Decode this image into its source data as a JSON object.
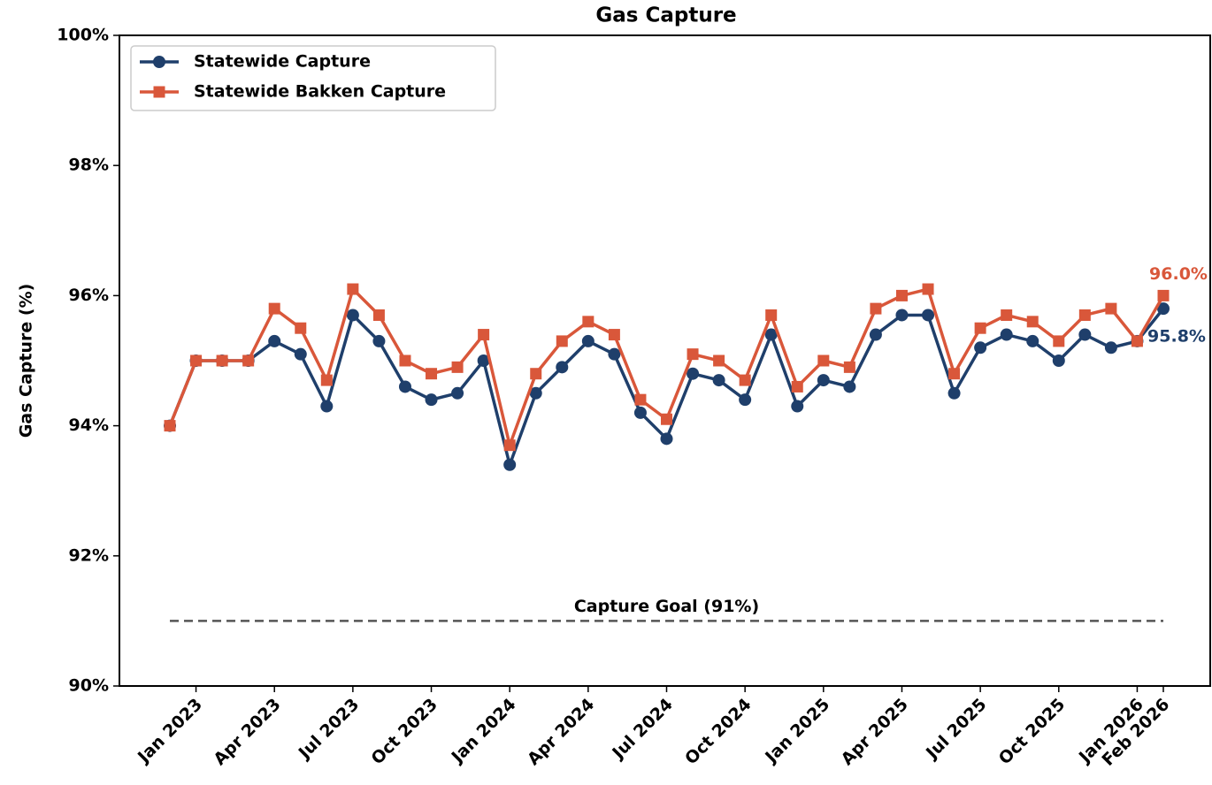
{
  "chart_data": {
    "type": "line",
    "title": "Gas Capture",
    "y_label": "Gas Capture (%)",
    "x": [
      "2022-12",
      "2023-01",
      "2023-02",
      "2023-03",
      "2023-04",
      "2023-05",
      "2023-06",
      "2023-07",
      "2023-08",
      "2023-09",
      "2023-10",
      "2023-11",
      "2023-12",
      "2024-01",
      "2024-02",
      "2024-03",
      "2024-04",
      "2024-05",
      "2024-06",
      "2024-07",
      "2024-08",
      "2024-09",
      "2024-10",
      "2024-11",
      "2024-12",
      "2025-01",
      "2025-02",
      "2025-03",
      "2025-04",
      "2025-05",
      "2025-06",
      "2025-07",
      "2025-08",
      "2025-09",
      "2025-10",
      "2025-11",
      "2025-12",
      "2026-01",
      "2026-02"
    ],
    "xticks": [
      {
        "value": "2023-01",
        "label": "Jan 2023"
      },
      {
        "value": "2023-04",
        "label": "Apr 2023"
      },
      {
        "value": "2023-07",
        "label": "Jul 2023"
      },
      {
        "value": "2023-10",
        "label": "Oct 2023"
      },
      {
        "value": "2024-01",
        "label": "Jan 2024"
      },
      {
        "value": "2024-04",
        "label": "Apr 2024"
      },
      {
        "value": "2024-07",
        "label": "Jul 2024"
      },
      {
        "value": "2024-10",
        "label": "Oct 2024"
      },
      {
        "value": "2025-01",
        "label": "Jan 2025"
      },
      {
        "value": "2025-04",
        "label": "Apr 2025"
      },
      {
        "value": "2025-07",
        "label": "Jul 2025"
      },
      {
        "value": "2025-10",
        "label": "Oct 2025"
      },
      {
        "value": "2026-01",
        "label": "Jan 2026"
      },
      {
        "value": "2026-02",
        "label": "Feb 2026"
      }
    ],
    "ylim": [
      90,
      100
    ],
    "yticks": [
      {
        "value": 90,
        "label": "90%"
      },
      {
        "value": 92,
        "label": "92%"
      },
      {
        "value": 94,
        "label": "94%"
      },
      {
        "value": 96,
        "label": "96%"
      },
      {
        "value": 98,
        "label": "98%"
      },
      {
        "value": 100,
        "label": "100%"
      }
    ],
    "grid": false,
    "legend": "upper left",
    "series": [
      {
        "name": "Statewide Capture",
        "color": "#1f3f6b",
        "marker": "circle",
        "values": [
          94.0,
          95.0,
          95.0,
          95.0,
          95.3,
          95.1,
          94.3,
          95.7,
          95.3,
          94.6,
          94.4,
          94.5,
          95.0,
          93.4,
          94.5,
          94.9,
          95.3,
          95.1,
          94.2,
          93.8,
          94.8,
          94.7,
          94.4,
          95.4,
          94.3,
          94.7,
          94.6,
          95.4,
          95.7,
          95.7,
          94.5,
          95.2,
          95.4,
          95.3,
          95.0,
          95.4,
          95.2,
          95.3,
          95.8
        ],
        "value_labels": [
          null,
          null,
          null,
          null,
          null,
          null,
          null,
          null,
          null,
          null,
          null,
          null,
          null,
          null,
          null,
          null,
          null,
          null,
          null,
          null,
          null,
          null,
          null,
          null,
          null,
          null,
          null,
          null,
          null,
          null,
          null,
          null,
          null,
          null,
          null,
          null,
          null,
          null,
          "95.8%"
        ]
      },
      {
        "name": "Statewide Bakken Capture",
        "color": "#d9573a",
        "marker": "square",
        "values": [
          94.0,
          95.0,
          95.0,
          95.0,
          95.8,
          95.5,
          94.7,
          96.1,
          95.7,
          95.0,
          94.8,
          94.9,
          95.4,
          93.7,
          94.8,
          95.3,
          95.6,
          95.4,
          94.4,
          94.1,
          95.1,
          95.0,
          94.7,
          95.7,
          94.6,
          95.0,
          94.9,
          95.8,
          96.0,
          96.1,
          94.8,
          95.5,
          95.7,
          95.6,
          95.3,
          95.7,
          95.8,
          95.3,
          96.0
        ],
        "value_labels": [
          null,
          null,
          null,
          null,
          null,
          null,
          null,
          null,
          null,
          null,
          null,
          null,
          null,
          null,
          null,
          null,
          null,
          null,
          null,
          null,
          null,
          null,
          null,
          null,
          null,
          null,
          null,
          null,
          null,
          null,
          null,
          null,
          null,
          null,
          null,
          null,
          null,
          null,
          "96.0%"
        ]
      }
    ],
    "goal": {
      "value": 91,
      "label": "Capture Goal (91%)",
      "color": "#555555"
    }
  }
}
